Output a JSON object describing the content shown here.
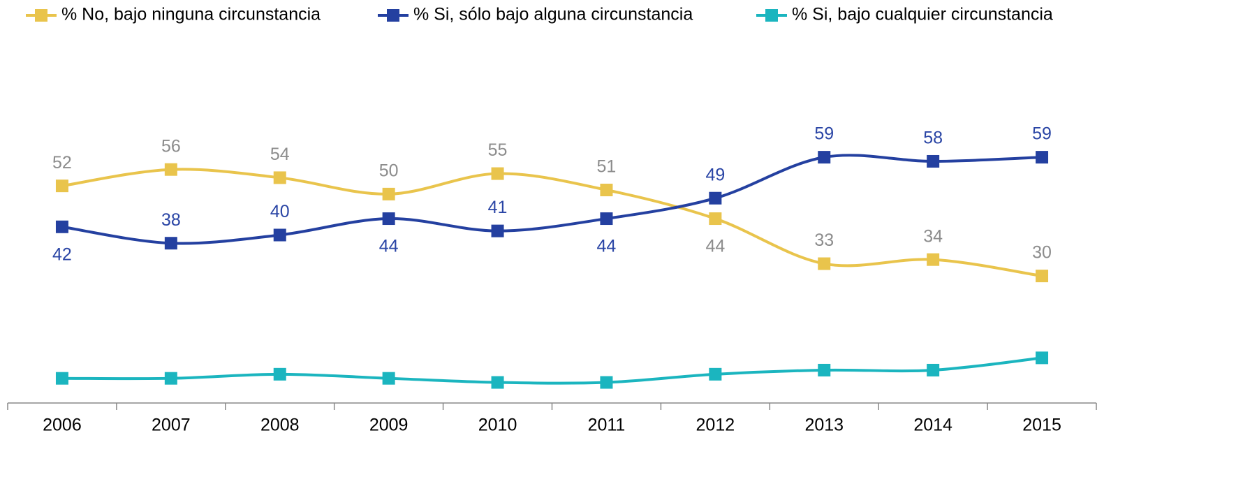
{
  "chart_data": {
    "type": "line",
    "categories": [
      "2006",
      "2007",
      "2008",
      "2009",
      "2010",
      "2011",
      "2012",
      "2013",
      "2014",
      "2015"
    ],
    "series": [
      {
        "name": "% No, bajo ninguna circunstancia",
        "color": "#e9c44c",
        "label_color": "#8c8c8c",
        "values": [
          52,
          56,
          54,
          50,
          55,
          51,
          44,
          33,
          34,
          30
        ]
      },
      {
        "name": "% Si, sólo bajo alguna circunstancia",
        "color": "#2440a0",
        "label_color": "#2a45a5",
        "values": [
          42,
          38,
          40,
          44,
          41,
          44,
          49,
          59,
          58,
          59
        ]
      },
      {
        "name": "% Si, bajo cualquier circunstancia",
        "color": "#1bb5bf",
        "values": [
          5,
          5,
          6,
          5,
          4,
          4,
          6,
          7,
          7,
          10
        ]
      }
    ],
    "ylim": [
      0,
      80
    ]
  }
}
